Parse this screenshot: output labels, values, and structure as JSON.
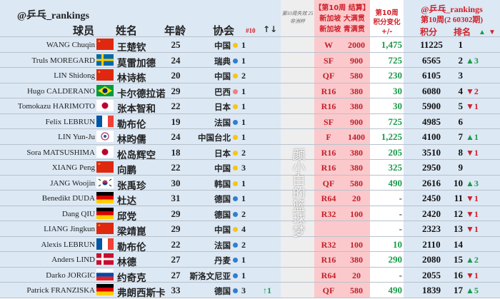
{
  "header": {
    "brand": "@乒乓_rankings",
    "col_player": "球员",
    "col_name": "姓名",
    "col_age": "年龄",
    "col_assoc": "协会",
    "col_top10": "#10",
    "col_top10_arrow": "↑↓",
    "expired_note": "第10周失效 25非洲杯",
    "event_line1": "【第10周 结算】",
    "event_line2": "新加坡 大满贯",
    "event_line3": "新加坡 青满贯",
    "change_line1": "第10周",
    "change_line2": "积分变化",
    "change_line3": "+/-",
    "right_brand": "@乒乓_rankings",
    "right_week": "第10周(2 60302期)",
    "col_points": "积分",
    "col_rank": "排名",
    "up_marker": "▲",
    "down_marker": "▼"
  },
  "colors": {
    "gold_dot": "#f5c518",
    "blue_dot": "#2f7fd0",
    "pink_dot": "#f08080",
    "green": "#1a9a4a",
    "red": "#d0202a"
  },
  "rows": [
    {
      "en": "WANG Chuqin",
      "flag": "china",
      "cn": "王楚钦",
      "age": "25",
      "assoc": "中国",
      "dot": "gold",
      "count": "1",
      "top10": "",
      "stage": "W",
      "event_pts": "2000",
      "change": "1,475",
      "points": "11225",
      "rank": "1",
      "move": "",
      "dir": ""
    },
    {
      "en": "Truls MOREGARD",
      "flag": "sweden",
      "cn": "莫雷加德",
      "age": "24",
      "assoc": "瑞典",
      "dot": "blue",
      "count": "1",
      "top10": "",
      "stage": "SF",
      "event_pts": "900",
      "change": "725",
      "points": "6565",
      "rank": "2",
      "move": "▲3",
      "dir": "up"
    },
    {
      "en": "LIN Shidong",
      "flag": "china",
      "cn": "林诗栋",
      "age": "20",
      "assoc": "中国",
      "dot": "gold",
      "count": "2",
      "top10": "",
      "stage": "QF",
      "event_pts": "580",
      "change": "230",
      "points": "6105",
      "rank": "3",
      "move": "",
      "dir": ""
    },
    {
      "en": "Hugo CALDERANO",
      "flag": "brazil",
      "cn": "卡尔德拉诺",
      "age": "29",
      "assoc": "巴西",
      "dot": "pink",
      "count": "1",
      "top10": "",
      "stage": "R16",
      "event_pts": "380",
      "change": "30",
      "points": "6080",
      "rank": "4",
      "move": "▼2",
      "dir": "down"
    },
    {
      "en": "Tomokazu HARIMOTO",
      "flag": "japan",
      "cn": "张本智和",
      "age": "22",
      "assoc": "日本",
      "dot": "gold",
      "count": "1",
      "top10": "",
      "stage": "R16",
      "event_pts": "380",
      "change": "30",
      "points": "5900",
      "rank": "5",
      "move": "▼1",
      "dir": "down"
    },
    {
      "en": "Felix LEBRUN",
      "flag": "france",
      "cn": "勒布伦",
      "age": "19",
      "assoc": "法国",
      "dot": "blue",
      "count": "1",
      "top10": "",
      "stage": "SF",
      "event_pts": "900",
      "change": "725",
      "points": "4985",
      "rank": "6",
      "move": "",
      "dir": ""
    },
    {
      "en": "LIN Yun-Ju",
      "flag": "tpe",
      "cn": "林昀儒",
      "age": "24",
      "assoc": "中国台北",
      "dot": "gold",
      "count": "1",
      "top10": "",
      "stage": "F",
      "event_pts": "1400",
      "change": "1,225",
      "points": "4100",
      "rank": "7",
      "move": "▲1",
      "dir": "up"
    },
    {
      "en": "Sora MATSUSHIMA",
      "flag": "japan",
      "cn": "松岛辉空",
      "age": "18",
      "assoc": "日本",
      "dot": "gold",
      "count": "2",
      "top10": "",
      "stage": "R16",
      "event_pts": "380",
      "change": "205",
      "points": "3510",
      "rank": "8",
      "move": "▼1",
      "dir": "down"
    },
    {
      "en": "XIANG Peng",
      "flag": "china",
      "cn": "向鹏",
      "age": "22",
      "assoc": "中国",
      "dot": "gold",
      "count": "3",
      "top10": "",
      "stage": "R16",
      "event_pts": "380",
      "change": "325",
      "points": "2950",
      "rank": "9",
      "move": "",
      "dir": ""
    },
    {
      "en": "JANG Woojin",
      "flag": "korea",
      "cn": "张禹珍",
      "age": "30",
      "assoc": "韩国",
      "dot": "gold",
      "count": "1",
      "top10": "",
      "stage": "QF",
      "event_pts": "580",
      "change": "490",
      "points": "2616",
      "rank": "10",
      "move": "▲3",
      "dir": "up"
    },
    {
      "en": "Benedikt DUDA",
      "flag": "germany",
      "cn": "杜达",
      "age": "31",
      "assoc": "德国",
      "dot": "blue",
      "count": "1",
      "top10": "",
      "stage": "R64",
      "event_pts": "20",
      "change": "-",
      "points": "2450",
      "rank": "11",
      "move": "▼1",
      "dir": "down"
    },
    {
      "en": "Dang QIU",
      "flag": "germany",
      "cn": "邱党",
      "age": "29",
      "assoc": "德国",
      "dot": "blue",
      "count": "2",
      "top10": "",
      "stage": "R32",
      "event_pts": "100",
      "change": "-",
      "points": "2420",
      "rank": "12",
      "move": "▼1",
      "dir": "down"
    },
    {
      "en": "LIANG Jingkun",
      "flag": "china",
      "cn": "梁靖崑",
      "age": "29",
      "assoc": "中国",
      "dot": "gold",
      "count": "4",
      "top10": "",
      "stage": "",
      "event_pts": "",
      "change": "-",
      "points": "2323",
      "rank": "13",
      "move": "▼1",
      "dir": "down"
    },
    {
      "en": "Alexis LEBRUN",
      "flag": "france",
      "cn": "勒布伦",
      "age": "22",
      "assoc": "法国",
      "dot": "blue",
      "count": "2",
      "top10": "",
      "stage": "R32",
      "event_pts": "100",
      "change": "10",
      "points": "2110",
      "rank": "14",
      "move": "",
      "dir": ""
    },
    {
      "en": "Anders LIND",
      "flag": "denmark",
      "cn": "林德",
      "age": "27",
      "assoc": "丹麦",
      "dot": "blue",
      "count": "1",
      "top10": "",
      "stage": "R16",
      "event_pts": "380",
      "change": "290",
      "points": "2080",
      "rank": "15",
      "move": "▲2",
      "dir": "up"
    },
    {
      "en": "Darko JORGIC",
      "flag": "slovenia",
      "cn": "约奇克",
      "age": "27",
      "assoc": "斯洛文尼亚",
      "dot": "blue",
      "count": "1",
      "top10": "",
      "stage": "R64",
      "event_pts": "20",
      "change": "-",
      "points": "2055",
      "rank": "16",
      "move": "▼1",
      "dir": "down"
    },
    {
      "en": "Patrick FRANZISKA",
      "flag": "germany",
      "cn": "弗朗西斯卡",
      "age": "33",
      "assoc": "德国",
      "dot": "blue",
      "count": "3",
      "top10": "↑1",
      "stage": "QF",
      "event_pts": "580",
      "change": "490",
      "points": "1839",
      "rank": "17",
      "move": "▲5",
      "dir": "up"
    }
  ],
  "watermark": "颜小白的篮球梦"
}
